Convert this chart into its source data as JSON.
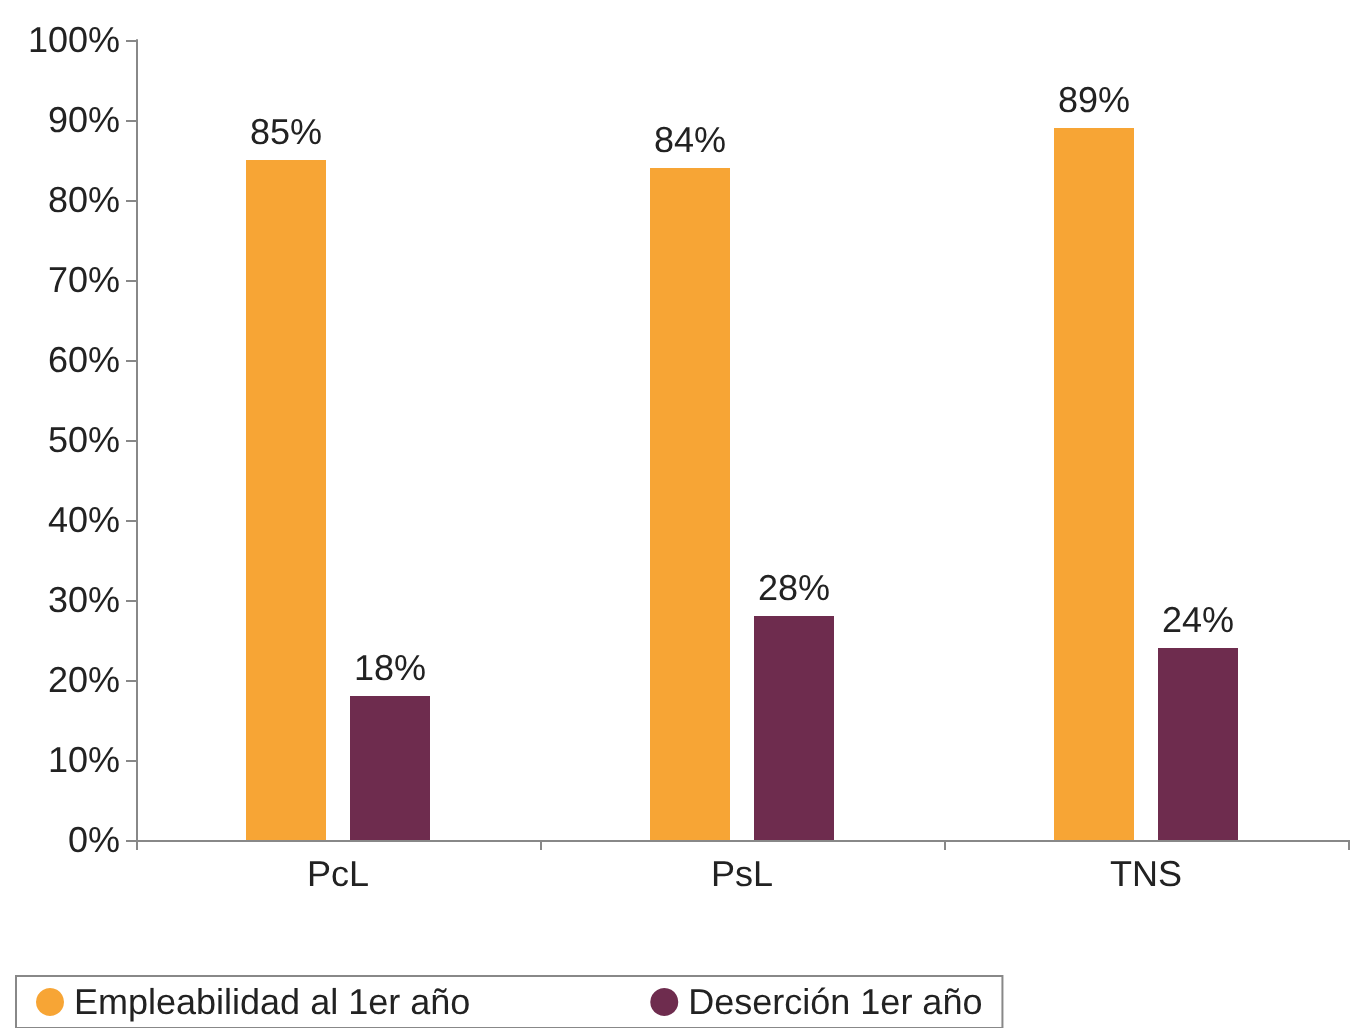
{
  "chart_data": {
    "type": "bar",
    "categories": [
      "PcL",
      "PsL",
      "TNS"
    ],
    "series": [
      {
        "name": "Empleabilidad al 1er año",
        "color": "#f7a535",
        "values": [
          85,
          84,
          89
        ],
        "value_labels": [
          "85%",
          "84%",
          "89%"
        ]
      },
      {
        "name": "Deserción 1er año",
        "color": "#6e2c4e",
        "values": [
          18,
          28,
          24
        ],
        "value_labels": [
          "18%",
          "28%",
          "24%"
        ]
      }
    ],
    "ylim": [
      0,
      100
    ],
    "yticks": [
      {
        "value": 0,
        "label": "0%"
      },
      {
        "value": 10,
        "label": "10%"
      },
      {
        "value": 20,
        "label": "20%"
      },
      {
        "value": 30,
        "label": "30%"
      },
      {
        "value": 40,
        "label": "40%"
      },
      {
        "value": 50,
        "label": "50%"
      },
      {
        "value": 60,
        "label": "60%"
      },
      {
        "value": 70,
        "label": "70%"
      },
      {
        "value": 80,
        "label": "80%"
      },
      {
        "value": 90,
        "label": "90%"
      },
      {
        "value": 100,
        "label": "100%"
      }
    ],
    "grid": false,
    "legend": "bottom"
  }
}
